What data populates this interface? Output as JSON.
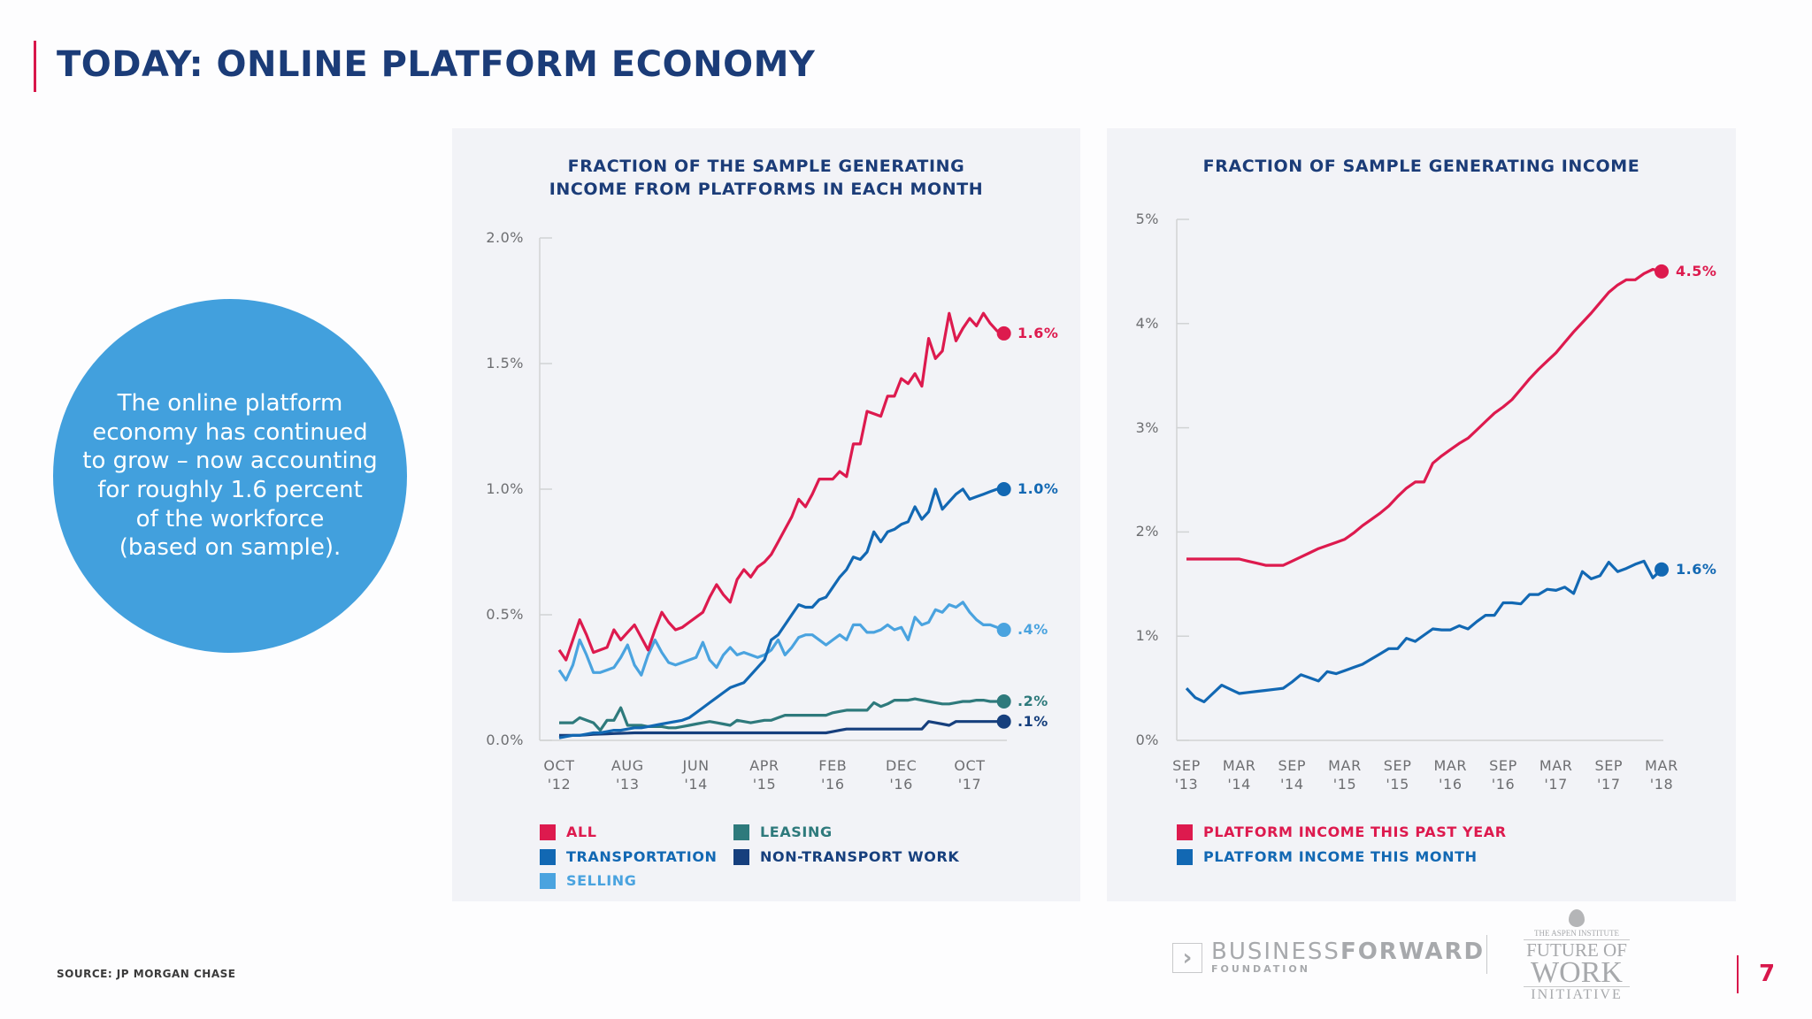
{
  "header": {
    "title": "TODAY: ONLINE PLATFORM ECONOMY"
  },
  "callout": {
    "lines": [
      "The online platform",
      "economy has continued",
      "to grow – now accounting",
      "for roughly 1.6 percent",
      "of the workforce",
      "(based on sample)."
    ]
  },
  "footer": {
    "source": "SOURCE: JP MORGAN CHASE",
    "logo1": {
      "main_light": "BUSINESS",
      "main_bold": "FORWARD",
      "sub": "FOUNDATION"
    },
    "logo2": {
      "top": "THE ASPEN INSTITUTE",
      "line1": "FUTURE OF",
      "line2": "WORK",
      "line3": "INITIATIVE"
    },
    "page_number": "7"
  },
  "chart_data": [
    {
      "type": "line",
      "title": [
        "FRACTION OF THE SAMPLE GENERATING",
        "INCOME FROM PLATFORMS IN EACH MONTH"
      ],
      "x_start": "Oct 2012",
      "x_end": "Mar 2018",
      "x_ticks": [
        {
          "top": "OCT",
          "bottom": "'12"
        },
        {
          "top": "AUG",
          "bottom": "'13"
        },
        {
          "top": "JUN",
          "bottom": "'14"
        },
        {
          "top": "APR",
          "bottom": "'15"
        },
        {
          "top": "FEB",
          "bottom": "'16"
        },
        {
          "top": "DEC",
          "bottom": "'16"
        },
        {
          "top": "OCT",
          "bottom": "'17"
        }
      ],
      "y_ticks": [
        "0.0%",
        "0.5%",
        "1.0%",
        "1.5%",
        "2.0%"
      ],
      "ylim": [
        0,
        2.0
      ],
      "grid": false,
      "legend_placement": "bottom",
      "series": [
        {
          "name": "ALL",
          "color": "#dd1a4e",
          "end_label": "1.6%",
          "values": [
            0.36,
            0.32,
            0.4,
            0.48,
            0.42,
            0.35,
            0.36,
            0.37,
            0.44,
            0.4,
            0.43,
            0.46,
            0.41,
            0.36,
            0.44,
            0.51,
            0.47,
            0.44,
            0.45,
            0.47,
            0.49,
            0.51,
            0.57,
            0.62,
            0.58,
            0.55,
            0.64,
            0.68,
            0.65,
            0.69,
            0.71,
            0.74,
            0.79,
            0.84,
            0.89,
            0.96,
            0.93,
            0.98,
            1.04,
            1.04,
            1.04,
            1.07,
            1.05,
            1.18,
            1.18,
            1.31,
            1.3,
            1.29,
            1.37,
            1.37,
            1.44,
            1.42,
            1.46,
            1.41,
            1.6,
            1.52,
            1.55,
            1.7,
            1.59,
            1.64,
            1.68,
            1.65,
            1.7,
            1.66,
            1.63,
            1.62
          ]
        },
        {
          "name": "TRANSPORTATION",
          "color": "#1268b3",
          "end_label": "1.0%",
          "values": [
            0.01,
            0.015,
            0.02,
            0.02,
            0.025,
            0.03,
            0.03,
            0.035,
            0.04,
            0.04,
            0.045,
            0.05,
            0.05,
            0.055,
            0.06,
            0.065,
            0.07,
            0.075,
            0.08,
            0.09,
            0.11,
            0.13,
            0.15,
            0.17,
            0.19,
            0.21,
            0.22,
            0.23,
            0.26,
            0.29,
            0.32,
            0.4,
            0.42,
            0.46,
            0.5,
            0.54,
            0.53,
            0.53,
            0.56,
            0.57,
            0.61,
            0.65,
            0.68,
            0.73,
            0.72,
            0.75,
            0.83,
            0.79,
            0.83,
            0.84,
            0.86,
            0.87,
            0.93,
            0.88,
            0.91,
            1.0,
            0.92,
            0.95,
            0.98,
            1.0,
            0.96,
            0.97,
            0.98,
            0.99,
            1.0,
            1.0
          ]
        },
        {
          "name": "SELLING",
          "color": "#4aa3df",
          "end_label": ".4%",
          "values": [
            0.28,
            0.24,
            0.3,
            0.4,
            0.34,
            0.27,
            0.27,
            0.28,
            0.29,
            0.33,
            0.38,
            0.3,
            0.26,
            0.34,
            0.4,
            0.35,
            0.31,
            0.3,
            0.31,
            0.32,
            0.33,
            0.39,
            0.32,
            0.29,
            0.34,
            0.37,
            0.34,
            0.35,
            0.34,
            0.33,
            0.34,
            0.36,
            0.4,
            0.34,
            0.37,
            0.41,
            0.42,
            0.42,
            0.4,
            0.38,
            0.4,
            0.42,
            0.4,
            0.46,
            0.46,
            0.43,
            0.43,
            0.44,
            0.46,
            0.44,
            0.45,
            0.4,
            0.49,
            0.46,
            0.47,
            0.52,
            0.51,
            0.54,
            0.53,
            0.55,
            0.51,
            0.48,
            0.46,
            0.46,
            0.45,
            0.44
          ]
        },
        {
          "name": "LEASING",
          "color": "#2e7a7c",
          "end_label": ".2%",
          "values": [
            0.07,
            0.07,
            0.07,
            0.09,
            0.08,
            0.07,
            0.04,
            0.08,
            0.08,
            0.13,
            0.06,
            0.06,
            0.06,
            0.055,
            0.055,
            0.055,
            0.05,
            0.05,
            0.055,
            0.06,
            0.065,
            0.07,
            0.075,
            0.07,
            0.065,
            0.06,
            0.08,
            0.075,
            0.07,
            0.075,
            0.08,
            0.08,
            0.09,
            0.1,
            0.1,
            0.1,
            0.1,
            0.1,
            0.1,
            0.1,
            0.11,
            0.115,
            0.12,
            0.12,
            0.12,
            0.12,
            0.15,
            0.135,
            0.145,
            0.16,
            0.16,
            0.16,
            0.165,
            0.16,
            0.155,
            0.15,
            0.145,
            0.145,
            0.15,
            0.155,
            0.155,
            0.16,
            0.16,
            0.155,
            0.155,
            0.155
          ]
        },
        {
          "name": "NON-TRANSPORT WORK",
          "color": "#163f7d",
          "end_label": ".1%",
          "values": [
            0.02,
            0.02,
            0.02,
            0.02,
            0.022,
            0.024,
            0.025,
            0.026,
            0.027,
            0.028,
            0.029,
            0.03,
            0.03,
            0.03,
            0.03,
            0.03,
            0.03,
            0.03,
            0.03,
            0.03,
            0.03,
            0.03,
            0.03,
            0.03,
            0.03,
            0.03,
            0.03,
            0.03,
            0.03,
            0.03,
            0.03,
            0.03,
            0.03,
            0.03,
            0.03,
            0.03,
            0.03,
            0.03,
            0.03,
            0.03,
            0.035,
            0.04,
            0.045,
            0.045,
            0.045,
            0.045,
            0.045,
            0.045,
            0.045,
            0.045,
            0.045,
            0.045,
            0.045,
            0.045,
            0.075,
            0.07,
            0.065,
            0.06,
            0.075,
            0.075,
            0.075,
            0.075,
            0.075,
            0.075,
            0.075,
            0.075
          ]
        }
      ]
    },
    {
      "type": "line",
      "title": [
        "FRACTION OF SAMPLE GENERATING INCOME"
      ],
      "x_start": "Sep 2013",
      "x_end": "Mar 2018",
      "x_ticks": [
        {
          "top": "SEP",
          "bottom": "'13"
        },
        {
          "top": "MAR",
          "bottom": "'14"
        },
        {
          "top": "SEP",
          "bottom": "'14"
        },
        {
          "top": "MAR",
          "bottom": "'15"
        },
        {
          "top": "SEP",
          "bottom": "'15"
        },
        {
          "top": "MAR",
          "bottom": "'16"
        },
        {
          "top": "SEP",
          "bottom": "'16"
        },
        {
          "top": "MAR",
          "bottom": "'17"
        },
        {
          "top": "SEP",
          "bottom": "'17"
        },
        {
          "top": "MAR",
          "bottom": "'18"
        }
      ],
      "y_ticks": [
        "0%",
        "1%",
        "2%",
        "3%",
        "4%",
        "5%"
      ],
      "ylim": [
        0,
        5
      ],
      "grid": false,
      "legend_placement": "bottom",
      "series": [
        {
          "name": "PLATFORM INCOME THIS PAST YEAR",
          "color": "#dd1a4e",
          "end_label": "4.5%",
          "values": [
            1.74,
            1.74,
            1.74,
            1.74,
            1.74,
            1.74,
            1.74,
            1.72,
            1.7,
            1.68,
            1.68,
            1.68,
            1.72,
            1.76,
            1.8,
            1.84,
            1.87,
            1.9,
            1.93,
            1.99,
            2.06,
            2.12,
            2.18,
            2.25,
            2.34,
            2.42,
            2.48,
            2.48,
            2.66,
            2.73,
            2.79,
            2.85,
            2.9,
            2.98,
            3.06,
            3.14,
            3.2,
            3.27,
            3.37,
            3.47,
            3.56,
            3.64,
            3.72,
            3.82,
            3.92,
            4.01,
            4.1,
            4.2,
            4.3,
            4.37,
            4.42,
            4.42,
            4.48,
            4.52,
            4.5
          ]
        },
        {
          "name": "PLATFORM INCOME THIS MONTH",
          "color": "#1268b3",
          "end_label": "1.6%",
          "values": [
            0.5,
            0.41,
            0.37,
            0.45,
            0.53,
            0.49,
            0.45,
            0.46,
            0.47,
            0.48,
            0.49,
            0.5,
            0.56,
            0.63,
            0.6,
            0.57,
            0.66,
            0.64,
            0.67,
            0.7,
            0.73,
            0.78,
            0.83,
            0.88,
            0.88,
            0.98,
            0.95,
            1.01,
            1.07,
            1.06,
            1.06,
            1.1,
            1.07,
            1.14,
            1.2,
            1.2,
            1.32,
            1.32,
            1.31,
            1.4,
            1.4,
            1.45,
            1.44,
            1.47,
            1.41,
            1.62,
            1.55,
            1.58,
            1.71,
            1.62,
            1.65,
            1.69,
            1.72,
            1.56,
            1.64
          ]
        }
      ]
    }
  ]
}
